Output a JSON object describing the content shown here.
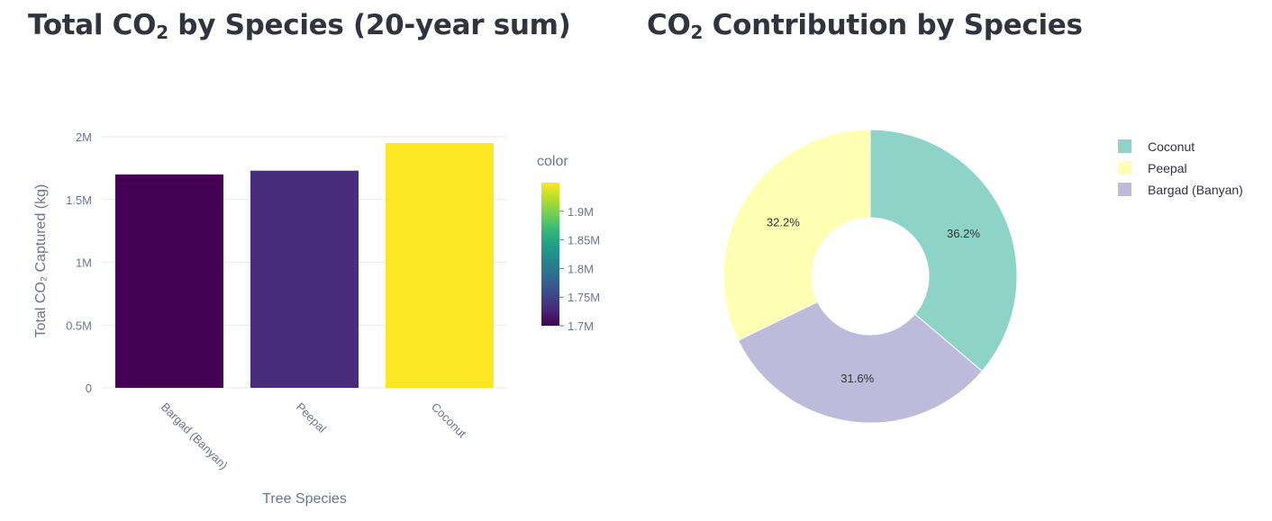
{
  "bar_panel": {
    "title_pre": "Total CO",
    "title_sub": "2",
    "title_post": " by Species (20-year sum)"
  },
  "pie_panel": {
    "title_pre": "CO",
    "title_sub": "2",
    "title_post": " Contribution by Species"
  },
  "chart_data": [
    {
      "type": "bar",
      "title": "Total CO₂ by Species (20-year sum)",
      "xlabel": "Tree Species",
      "ylabel": "Total CO₂ Captured (kg)",
      "categories": [
        "Bargad (Banyan)",
        "Peepal",
        "Coconut"
      ],
      "values": [
        1700000,
        1730000,
        1950000
      ],
      "bar_colors": [
        "#440154",
        "#472d7b",
        "#fde725"
      ],
      "ylim": [
        0,
        2000000
      ],
      "yticks": [
        0,
        500000,
        1000000,
        1500000,
        2000000
      ],
      "ytick_labels": [
        "0",
        "0.5M",
        "1M",
        "1.5M",
        "2M"
      ],
      "grid": true,
      "colorbar": {
        "title": "color",
        "range": [
          1700000,
          1950000
        ],
        "ticks": [
          1700000,
          1750000,
          1800000,
          1850000,
          1900000
        ],
        "tick_labels": [
          "1.7M",
          "1.75M",
          "1.8M",
          "1.85M",
          "1.9M"
        ],
        "colorscale": [
          "#440154",
          "#482878",
          "#3e4989",
          "#31688e",
          "#26828e",
          "#1f9e89",
          "#35b779",
          "#6ece58",
          "#b5de2b",
          "#fde725"
        ]
      }
    },
    {
      "type": "pie",
      "title": "CO₂ Contribution by Species",
      "hole": true,
      "labels": [
        "Coconut",
        "Bargad (Banyan)",
        "Peepal"
      ],
      "values": [
        36.2,
        31.6,
        32.2
      ],
      "value_labels": [
        "36.2%",
        "31.6%",
        "32.2%"
      ],
      "colors": [
        "#8dd3c7",
        "#bebada",
        "#ffffb3"
      ],
      "legend": {
        "placement": "top-right",
        "entries": [
          "Coconut",
          "Peepal",
          "Bargad (Banyan)"
        ],
        "colors": [
          "#8dd3c7",
          "#ffffb3",
          "#bebada"
        ]
      }
    }
  ]
}
